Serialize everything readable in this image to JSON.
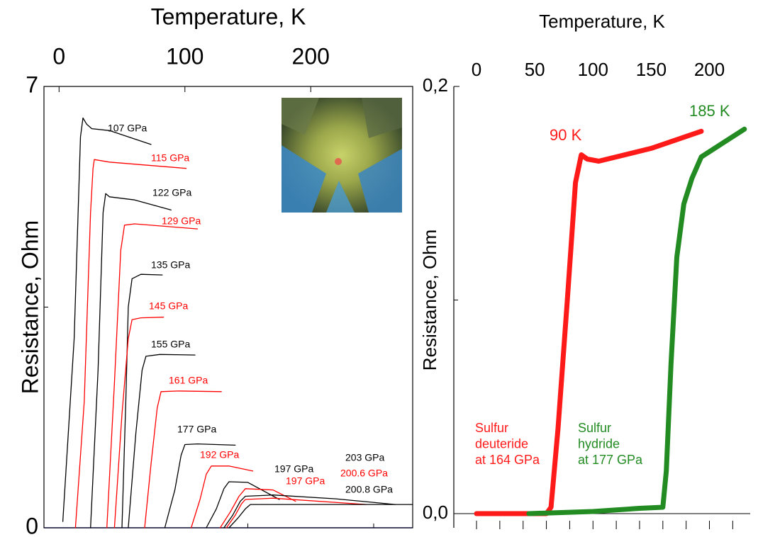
{
  "chart_data": [
    {
      "type": "line",
      "title": "Temperature, K",
      "y_label": "Resistance, Ohm",
      "xlim": [
        -12,
        281
      ],
      "ylim": [
        0,
        7
      ],
      "xticks": [
        0,
        100,
        200
      ],
      "minor_xticks": [
        50,
        150,
        250
      ],
      "yticks": [
        0,
        7
      ],
      "minor_yticks": [
        3.5
      ],
      "line_width": 1.3,
      "series": [
        {
          "name": "107 GPa",
          "color": "#000000",
          "x": [
            3,
            12,
            17,
            19,
            22,
            26,
            40,
            73
          ],
          "values": [
            0.1,
            3,
            6.2,
            6.5,
            6.4,
            6.33,
            6.3,
            6.08
          ]
        },
        {
          "name": "115 GPa",
          "color": "#ff0000",
          "x": [
            13,
            20,
            25,
            27,
            28,
            40,
            101
          ],
          "values": [
            0,
            2,
            5,
            5.7,
            5.84,
            5.8,
            5.7
          ]
        },
        {
          "name": "122 GPa",
          "color": "#000000",
          "x": [
            25,
            31,
            35,
            37,
            40,
            60,
            89
          ],
          "values": [
            0,
            2.5,
            5.0,
            5.3,
            5.25,
            5.2,
            5.04
          ]
        },
        {
          "name": "129 GPa",
          "color": "#ff0000",
          "x": [
            38,
            44,
            49,
            52,
            60,
            110
          ],
          "values": [
            0,
            2.3,
            4.4,
            4.8,
            4.82,
            4.74
          ]
        },
        {
          "name": "135 GPa",
          "color": "#000000",
          "x": [
            50,
            53,
            55,
            58,
            65,
            82
          ],
          "values": [
            0,
            2.0,
            3.5,
            3.95,
            4.02,
            4.01
          ]
        },
        {
          "name": "145 GPa",
          "color": "#ff0000",
          "x": [
            44,
            50,
            55,
            58,
            65,
            83
          ],
          "values": [
            0,
            1.8,
            3.0,
            3.3,
            3.33,
            3.34
          ]
        },
        {
          "name": "155 GPa",
          "color": "#000000",
          "x": [
            55,
            61,
            66,
            69,
            80,
            108
          ],
          "values": [
            0,
            1.5,
            2.5,
            2.72,
            2.75,
            2.74
          ]
        },
        {
          "name": "161 GPa",
          "color": "#ff0000",
          "x": [
            68,
            73,
            78,
            81,
            95,
            129
          ],
          "values": [
            0,
            1.0,
            1.9,
            2.16,
            2.17,
            2.16
          ]
        },
        {
          "name": "177 GPa",
          "color": "#000000",
          "x": [
            84,
            92,
            97,
            100,
            110,
            140
          ],
          "values": [
            0,
            0.6,
            1.15,
            1.32,
            1.33,
            1.31
          ]
        },
        {
          "name": "192 GPa",
          "color": "#ff0000",
          "x": [
            105,
            112,
            117,
            121,
            135,
            154
          ],
          "values": [
            0,
            0.45,
            0.85,
            0.98,
            0.98,
            0.9
          ]
        },
        {
          "name": "197 GPa",
          "color": "#000000",
          "x": [
            117,
            125,
            131,
            135,
            150,
            175
          ],
          "values": [
            0,
            0.3,
            0.62,
            0.73,
            0.72,
            0.45
          ]
        },
        {
          "name": "197 GPa",
          "color": "#ff0000",
          "x": [
            128,
            136,
            143,
            148,
            170,
            188
          ],
          "values": [
            0,
            0.25,
            0.5,
            0.62,
            0.6,
            0.42
          ]
        },
        {
          "name": "200.8 GPa",
          "color": "#000000",
          "x": [
            131,
            138,
            144,
            148,
            170,
            220,
            267
          ],
          "values": [
            0,
            0.2,
            0.42,
            0.5,
            0.52,
            0.46,
            0.37
          ]
        },
        {
          "name": "200.6 GPa",
          "color": "#ff0000",
          "x": [
            133,
            140,
            145,
            148,
            170,
            244
          ],
          "values": [
            0,
            0.2,
            0.38,
            0.45,
            0.47,
            0.37
          ]
        },
        {
          "name": "203 GPa",
          "color": "#000000",
          "x": [
            135,
            142,
            148,
            152,
            200,
            281
          ],
          "values": [
            0,
            0.15,
            0.3,
            0.37,
            0.37,
            0.37
          ]
        }
      ]
    },
    {
      "type": "line",
      "title": "Temperature, K",
      "y_label": "Resistance, Ohm",
      "xlim": [
        -19.5,
        235
      ],
      "ylim": [
        0,
        0.2
      ],
      "xticks": [
        0,
        50,
        100,
        150,
        200
      ],
      "minor_xticks": [
        0,
        20,
        40,
        60,
        80,
        100,
        120,
        140,
        160,
        180,
        200,
        220
      ],
      "yticks": [
        {
          "value": 0,
          "label": "0,0"
        },
        {
          "value": 0.2,
          "label": "0,2"
        }
      ],
      "minor_yticks": [
        0.1
      ],
      "line_width": 7,
      "series": [
        {
          "color": "#ff1a1a",
          "x": [
            0,
            60,
            64,
            70,
            78,
            85,
            90,
            95,
            105,
            150,
            193
          ],
          "values": [
            0,
            0,
            0.003,
            0.04,
            0.1,
            0.155,
            0.168,
            0.166,
            0.165,
            0.171,
            0.179
          ]
        },
        {
          "color": "#228b22",
          "x": [
            45,
            100,
            140,
            160,
            163,
            167,
            172,
            178,
            185,
            193,
            230
          ],
          "values": [
            0,
            0.001,
            0.0025,
            0.003,
            0.02,
            0.07,
            0.12,
            0.145,
            0.157,
            0.167,
            0.18
          ]
        }
      ],
      "annotations": [
        {
          "text": [
            "90 K"
          ],
          "color": "#ff1a1a"
        },
        {
          "text": [
            "185 K"
          ],
          "color": "#228b22"
        },
        {
          "text": [
            "Sulfur",
            "deuteride",
            "at 164 GPa"
          ],
          "color": "#ff1a1a"
        },
        {
          "text": [
            "Sulfur",
            "hydride",
            "at 177 GPa"
          ],
          "color": "#228b22"
        }
      ]
    }
  ]
}
